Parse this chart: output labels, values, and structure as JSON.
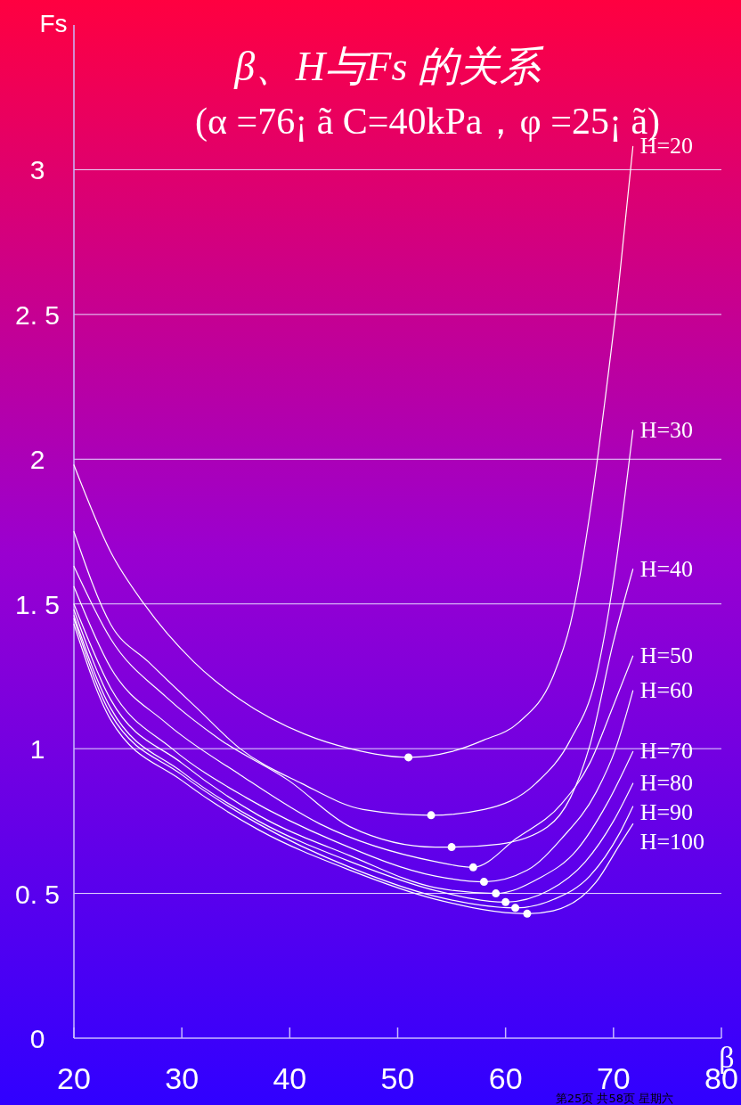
{
  "chart_data": {
    "type": "line",
    "title": "β、H与Fs 的关系",
    "subtitle": "(α =76¡ ã  C=40kPa，φ =25¡ ã)",
    "xlabel": "β",
    "ylabel": "Fs",
    "xlim": [
      20,
      80
    ],
    "xticks": [
      20,
      30,
      40,
      50,
      60,
      70,
      80
    ],
    "ylim": [
      0,
      3.5
    ],
    "yticks": [
      0,
      {
        "value": 0.5,
        "label": "0. 5"
      },
      1,
      {
        "value": 1.5,
        "label": "1. 5"
      },
      2,
      {
        "value": 2.5,
        "label": "2. 5"
      },
      3
    ],
    "grid": "y",
    "marker": "none",
    "line_style": "solid",
    "annotations": [
      "第25页  共58页  星期六"
    ],
    "series": [
      {
        "name": "H=20",
        "color": "#ffffff",
        "x": [
          20,
          23.4,
          26.5,
          31.1,
          35.4,
          41.4,
          45.6,
          51,
          55,
          58,
          61.2,
          64.4,
          66,
          68,
          69.2,
          70.4,
          71.8
        ],
        "values": [
          1.98,
          1.68,
          1.5,
          1.3,
          1.17,
          1.05,
          1,
          0.97,
          0.99,
          1.03,
          1.09,
          1.25,
          1.43,
          1.86,
          2.2,
          2.57,
          3.08
        ]
      },
      {
        "name": "H=30",
        "color": "#ffffff",
        "x": [
          20,
          23.4,
          26.9,
          31.4,
          35.4,
          41.1,
          46.8,
          53.1,
          58,
          62.8,
          66,
          68.4,
          70,
          71.8
        ],
        "values": [
          1.75,
          1.43,
          1.3,
          1.14,
          1,
          0.88,
          0.79,
          0.77,
          0.79,
          0.88,
          1.03,
          1.25,
          1.58,
          2.1
        ]
      },
      {
        "name": "H=40",
        "color": "#ffffff",
        "x": [
          20,
          23.4,
          28.5,
          33.6,
          39.9,
          45.6,
          53.5,
          55,
          59.4,
          63.9,
          66,
          67.8,
          70,
          71.8
        ],
        "values": [
          1.63,
          1.38,
          1.18,
          1.03,
          0.89,
          0.73,
          0.66,
          0.66,
          0.67,
          0.73,
          0.83,
          1.01,
          1.37,
          1.62
        ]
      },
      {
        "name": "H=50",
        "color": "#ffffff",
        "x": [
          20,
          23.4,
          28.5,
          35.4,
          42.8,
          53.5,
          57,
          61,
          65.2,
          67.8,
          70,
          71.8
        ],
        "values": [
          1.56,
          1.28,
          1.09,
          0.91,
          0.74,
          0.61,
          0.59,
          0.69,
          0.81,
          0.95,
          1.15,
          1.32
        ]
      },
      {
        "name": "H=60",
        "color": "#ffffff",
        "x": [
          20,
          23.4,
          29.1,
          36,
          44.2,
          53.5,
          58,
          62,
          65.2,
          68.4,
          70.2,
          71.8
        ],
        "values": [
          1.5,
          1.21,
          1,
          0.83,
          0.68,
          0.56,
          0.54,
          0.58,
          0.69,
          0.85,
          1,
          1.2
        ]
      },
      {
        "name": "H=70",
        "color": "#ffffff",
        "x": [
          20,
          23.4,
          30,
          37.1,
          45.6,
          53.5,
          59.1,
          63,
          66.6,
          69.4,
          71.8
        ],
        "values": [
          1.48,
          1.17,
          0.95,
          0.77,
          0.63,
          0.52,
          0.5,
          0.55,
          0.65,
          0.81,
          0.99
        ]
      },
      {
        "name": "H=80",
        "color": "#ffffff",
        "x": [
          20,
          23.4,
          30,
          37.1,
          45.6,
          53.5,
          60,
          64,
          67.4,
          70,
          71.8
        ],
        "values": [
          1.46,
          1.14,
          0.92,
          0.75,
          0.61,
          0.51,
          0.47,
          0.51,
          0.61,
          0.75,
          0.88
        ]
      },
      {
        "name": "H=90",
        "color": "#ffffff",
        "x": [
          20,
          23.4,
          30,
          37.1,
          45.6,
          53.5,
          60.9,
          64.5,
          67.8,
          70.6,
          71.8
        ],
        "values": [
          1.45,
          1.12,
          0.91,
          0.74,
          0.59,
          0.49,
          0.45,
          0.48,
          0.56,
          0.71,
          0.8
        ]
      },
      {
        "name": "H=100",
        "color": "#ffffff",
        "x": [
          20,
          23.4,
          30,
          37.1,
          45.6,
          53.5,
          62,
          64.4,
          68.4,
          70.6,
          71.8
        ],
        "values": [
          1.43,
          1.1,
          0.89,
          0.72,
          0.58,
          0.48,
          0.43,
          0.44,
          0.54,
          0.67,
          0.74
        ]
      },
      {
        "type": "scatter",
        "marker": "circle",
        "color": "#ffffff",
        "x": [
          51,
          53.1,
          55,
          57,
          58,
          59.1,
          60,
          60.9,
          62
        ],
        "values": [
          0.97,
          0.77,
          0.66,
          0.59,
          0.54,
          0.5,
          0.47,
          0.45,
          0.43
        ]
      }
    ]
  }
}
